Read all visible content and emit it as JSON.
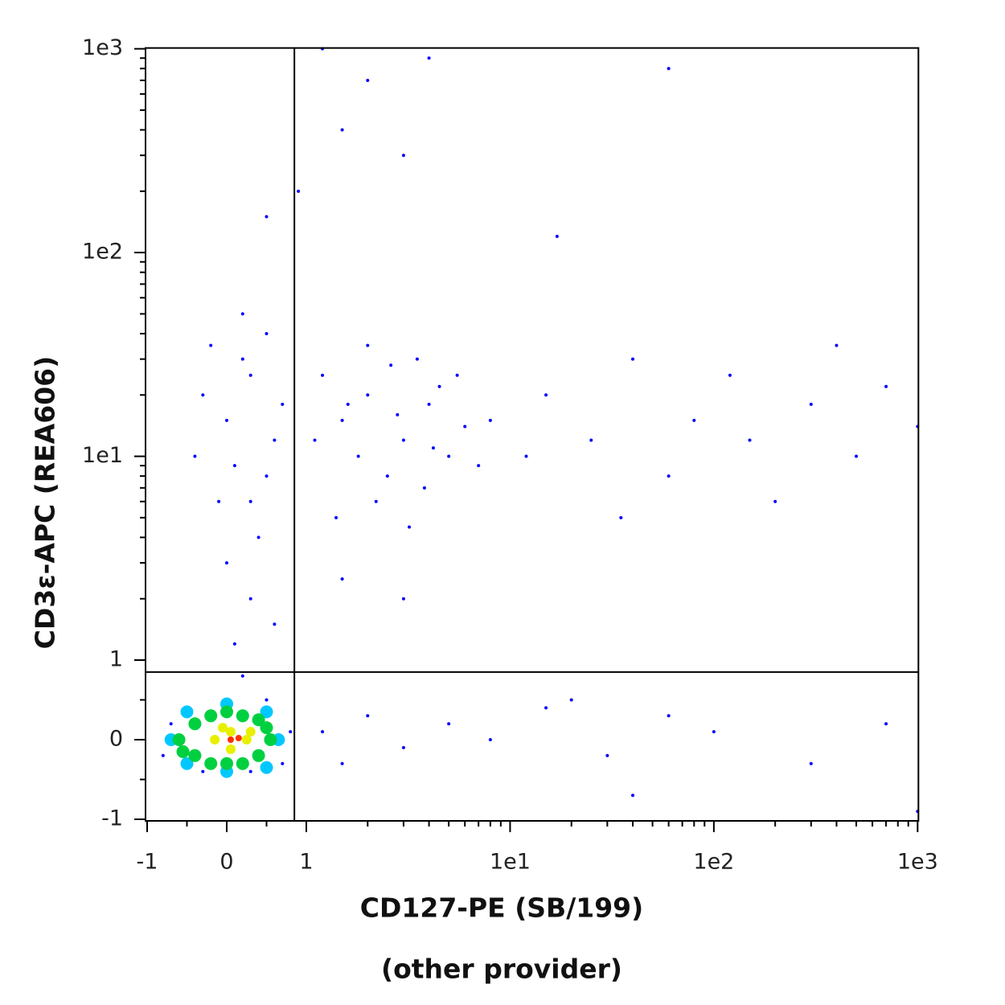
{
  "chart_data": {
    "type": "scatter",
    "xlabel": "CD127-PE (SB/199)",
    "xlabel2": "(other provider)",
    "ylabel": "CD3ε-APC (REA606)",
    "scale": "biexponential",
    "xlim": [
      -1,
      1000
    ],
    "ylim": [
      -1,
      1000
    ],
    "xticks": [
      -1,
      0,
      1,
      {
        "value": 10,
        "label": "1e1"
      },
      {
        "value": 100,
        "label": "1e2"
      },
      {
        "value": 1000,
        "label": "1e3"
      }
    ],
    "yticks": [
      -1,
      0,
      1,
      {
        "value": 10,
        "label": "1e1"
      },
      {
        "value": 100,
        "label": "1e2"
      },
      {
        "value": 1000,
        "label": "1e3"
      }
    ],
    "xminorticks": [
      -0.5,
      0.5,
      2,
      3,
      4,
      5,
      6,
      7,
      8,
      9,
      20,
      30,
      40,
      50,
      60,
      70,
      80,
      90,
      200,
      300,
      400,
      500,
      600,
      700,
      800,
      900
    ],
    "yminorticks": [
      -0.5,
      0.5,
      2,
      3,
      4,
      5,
      6,
      7,
      8,
      9,
      20,
      30,
      40,
      50,
      60,
      70,
      80,
      90,
      200,
      300,
      400,
      500,
      600,
      700,
      800,
      900
    ],
    "gates": {
      "x": 0.85,
      "y": 0.85
    },
    "series": [
      {
        "color": "#0000ff",
        "x": [
          -0.3,
          0.0,
          0.3,
          0.5,
          -0.1,
          0.6,
          0.2,
          0.4,
          -0.4,
          0.7,
          0.1,
          -0.2,
          0.5,
          0.3,
          0.0,
          1.5,
          2,
          3,
          2.5,
          4,
          1.2,
          5,
          3.5,
          2.2,
          6,
          1.8,
          4.5,
          2.8,
          1.4,
          7,
          3.2,
          2,
          5.5,
          1.1,
          3.8,
          8,
          2.6,
          4.2,
          1.6,
          15,
          25,
          40,
          60,
          80,
          120,
          200,
          300,
          500,
          700,
          1000,
          35,
          150,
          400,
          12,
          0.3,
          0.6,
          1.5,
          0.1,
          3,
          0.9,
          1.5,
          2,
          0.5,
          3,
          0.2,
          60,
          17,
          1.2,
          4,
          1.2,
          2,
          3,
          5,
          8,
          15,
          30,
          60,
          100,
          300,
          700,
          1000,
          40,
          20,
          1.5,
          -0.8,
          -0.7,
          0.8,
          0.7,
          0,
          0.3,
          -0.5,
          0.5,
          -0.3,
          0.2
        ],
        "y": [
          20,
          15,
          25,
          8,
          6,
          12,
          30,
          4,
          10,
          18,
          9,
          35,
          40,
          6,
          3,
          15,
          20,
          12,
          8,
          18,
          25,
          10,
          30,
          6,
          14,
          10,
          22,
          16,
          5,
          9,
          4.5,
          35,
          25,
          12,
          7,
          15,
          28,
          11,
          18,
          20,
          12,
          30,
          8,
          15,
          25,
          6,
          18,
          10,
          22,
          14,
          5,
          12,
          35,
          10,
          2,
          1.5,
          2.5,
          1.2,
          2,
          200,
          400,
          700,
          150,
          300,
          50,
          800,
          120,
          1000,
          900,
          0.1,
          0.3,
          -0.1,
          0.2,
          0,
          0.4,
          -0.2,
          0.3,
          0.1,
          -0.3,
          0.2,
          -0.9,
          -0.7,
          0.5,
          -0.3,
          -0.2,
          0.2,
          0.1,
          -0.3,
          0.5,
          -0.4,
          0.4,
          0.5,
          -0.4,
          0.8
        ]
      },
      {
        "color": "#00c8ff",
        "x": [
          -0.7,
          0.65,
          0,
          0,
          -0.5,
          0.5,
          0.5,
          -0.5
        ],
        "y": [
          0,
          0,
          0.45,
          -0.4,
          0.35,
          -0.35,
          0.35,
          -0.3
        ]
      },
      {
        "color": "#00d040",
        "x": [
          -0.6,
          -0.4,
          -0.4,
          -0.2,
          -0.2,
          0,
          0,
          0.2,
          0.2,
          0.4,
          0.4,
          0.55,
          -0.55,
          0.5
        ],
        "y": [
          0,
          0.2,
          -0.2,
          0.3,
          -0.3,
          0.35,
          -0.3,
          0.3,
          -0.3,
          0.25,
          -0.2,
          0,
          -0.15,
          0.15
        ]
      },
      {
        "color": "#e8f000",
        "x": [
          -0.15,
          0.05,
          0.25,
          0.05,
          -0.05,
          0.3
        ],
        "y": [
          0,
          0.1,
          0,
          -0.12,
          0.15,
          0.1
        ]
      },
      {
        "color": "#ff3000",
        "x": [
          0.05,
          0.15
        ],
        "y": [
          0,
          0.02
        ]
      }
    ]
  }
}
